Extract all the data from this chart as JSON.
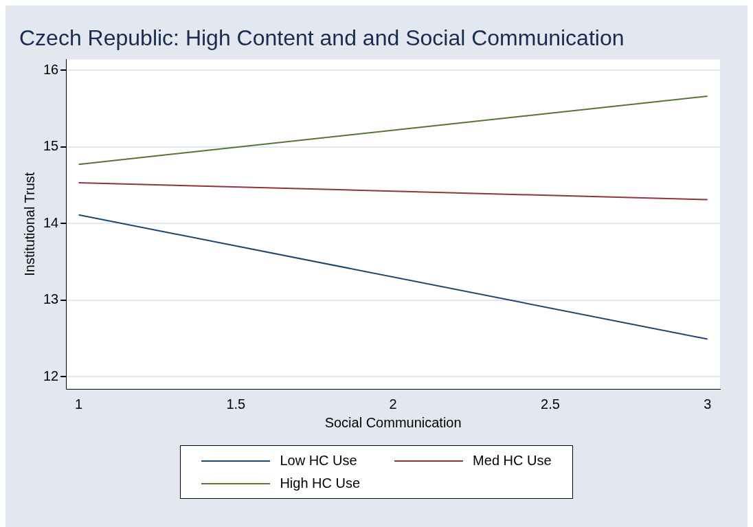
{
  "chart_data": {
    "type": "line",
    "title": "Czech Republic: High Content and and Social Communication",
    "xlabel": "Social Communication",
    "ylabel": "Institutional Trust",
    "x": [
      1,
      3
    ],
    "series": [
      {
        "name": "Low HC Use",
        "color": "#1a476f",
        "values": [
          14.11,
          12.49
        ]
      },
      {
        "name": "Med HC Use",
        "color": "#90353b",
        "values": [
          14.53,
          14.31
        ]
      },
      {
        "name": "High HC Use",
        "color": "#55752f",
        "values": [
          14.77,
          15.66
        ]
      }
    ],
    "xlim": [
      0.96,
      3.04
    ],
    "xticks": [
      1,
      1.5,
      2,
      2.5,
      3
    ],
    "ylim": [
      11.84,
      16.14
    ],
    "yticks": [
      12,
      13,
      14,
      15,
      16
    ],
    "grid": "y",
    "legend": "bottom",
    "marker": "none",
    "line_style": "solid"
  }
}
